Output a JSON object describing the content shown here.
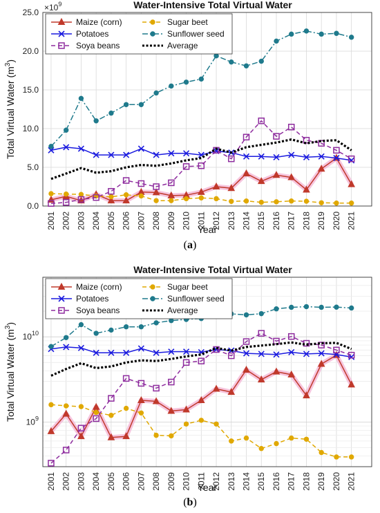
{
  "chart_data": [
    {
      "type": "line",
      "panel_label": "a",
      "title": "Water-Intensive Total Virtual Water",
      "xlabel": "Year",
      "ylabel": "Total Virtual Water (m",
      "ylabel_sup": "3",
      "ylabel_end": ")",
      "y_multiplier": "×10",
      "y_multiplier_exp": "9",
      "yscale": "linear",
      "ylim": [
        0,
        25
      ],
      "yticks": [
        "0.0",
        "5.0",
        "10.0",
        "15.0",
        "20.0",
        "25.0"
      ],
      "grid": true,
      "legend_position": "top-left",
      "x": [
        "2001",
        "2002",
        "2003",
        "2004",
        "2005",
        "2006",
        "2007",
        "2008",
        "2009",
        "2010",
        "2011",
        "2012",
        "2013",
        "2014",
        "2015",
        "2016",
        "2017",
        "2018",
        "2019",
        "2020",
        "2021"
      ],
      "series": [
        {
          "name": "Maize (corn)",
          "color": "#c0392b",
          "dash": "solid",
          "marker": "triangle",
          "values": [
            0.8,
            1.25,
            0.7,
            1.5,
            0.7,
            0.7,
            1.8,
            1.75,
            1.35,
            1.4,
            1.8,
            2.5,
            2.3,
            4.2,
            3.2,
            4.0,
            3.7,
            2.1,
            4.8,
            6.2,
            2.8
          ]
        },
        {
          "name": "Sugar beet",
          "color": "#e0a800",
          "dash": "dashed",
          "marker": "circle",
          "values": [
            1.6,
            1.55,
            1.5,
            1.3,
            1.2,
            1.45,
            1.3,
            0.7,
            0.7,
            0.95,
            1.05,
            0.95,
            0.6,
            0.65,
            0.48,
            0.55,
            0.65,
            0.62,
            0.42,
            0.38,
            0.38
          ]
        },
        {
          "name": "Potatoes",
          "color": "#1a1adf",
          "dash": "solid",
          "marker": "x",
          "values": [
            7.2,
            7.6,
            7.4,
            6.6,
            6.6,
            6.6,
            7.4,
            6.6,
            6.8,
            6.8,
            6.6,
            7.1,
            6.9,
            6.4,
            6.4,
            6.3,
            6.6,
            6.3,
            6.4,
            6.2,
            5.9
          ]
        },
        {
          "name": "Sunflower seed",
          "color": "#1f7a8c",
          "dash": "dashdot",
          "marker": "circle",
          "values": [
            7.7,
            9.8,
            13.9,
            11.0,
            12.0,
            13.1,
            13.1,
            14.6,
            15.5,
            16.0,
            16.4,
            19.4,
            18.6,
            18.1,
            18.7,
            21.3,
            22.2,
            22.6,
            22.2,
            22.3,
            21.8
          ]
        },
        {
          "name": "Soya beans",
          "color": "#8e2c9e",
          "dash": "dashed",
          "marker": "square",
          "values": [
            0.33,
            0.47,
            0.85,
            1.1,
            1.9,
            3.3,
            2.9,
            2.5,
            3.0,
            5.1,
            5.2,
            7.2,
            6.1,
            8.9,
            11.0,
            9.0,
            10.2,
            8.5,
            8.1,
            7.2,
            6.1
          ]
        },
        {
          "name": "Average",
          "color": "#000000",
          "dash": "dotted",
          "marker": "none",
          "values": [
            3.5,
            4.2,
            4.9,
            4.3,
            4.5,
            5.0,
            5.3,
            5.2,
            5.5,
            5.9,
            6.2,
            7.4,
            6.9,
            7.6,
            7.9,
            8.2,
            8.6,
            8.1,
            8.4,
            8.5,
            7.2
          ]
        }
      ]
    },
    {
      "type": "line",
      "panel_label": "b",
      "title": "Water-Intensive Total Virtual Water",
      "xlabel": "Year",
      "ylabel": "Total Virtual Water (m",
      "ylabel_sup": "3",
      "ylabel_end": ")",
      "yscale": "log",
      "ylim": [
        300000000.0,
        50000000000.0
      ],
      "yticks": [
        {
          "base": "10",
          "exp": "9",
          "value": 1000000000.0
        },
        {
          "base": "10",
          "exp": "10",
          "value": 10000000000.0
        }
      ],
      "grid": true,
      "legend_position": "top-left",
      "x": [
        "2001",
        "2002",
        "2003",
        "2004",
        "2005",
        "2006",
        "2007",
        "2008",
        "2009",
        "2010",
        "2011",
        "2012",
        "2013",
        "2014",
        "2015",
        "2016",
        "2017",
        "2018",
        "2019",
        "2020",
        "2021"
      ],
      "series": [
        {
          "name": "Maize (corn)",
          "color": "#c0392b",
          "dash": "solid",
          "marker": "triangle",
          "values": [
            780000000.0,
            1250000000.0,
            680000000.0,
            1500000000.0,
            660000000.0,
            680000000.0,
            1800000000.0,
            1750000000.0,
            1350000000.0,
            1400000000.0,
            1800000000.0,
            2450000000.0,
            2250000000.0,
            4100000000.0,
            3150000000.0,
            3900000000.0,
            3600000000.0,
            2050000000.0,
            4800000000.0,
            6100000000.0,
            2750000000.0
          ]
        },
        {
          "name": "Sugar beet",
          "color": "#e0a800",
          "dash": "dashed",
          "marker": "circle",
          "values": [
            1600000000.0,
            1550000000.0,
            1520000000.0,
            1300000000.0,
            1200000000.0,
            1450000000.0,
            1280000000.0,
            700000000.0,
            690000000.0,
            950000000.0,
            1050000000.0,
            950000000.0,
            600000000.0,
            650000000.0,
            490000000.0,
            560000000.0,
            650000000.0,
            630000000.0,
            440000000.0,
            390000000.0,
            390000000.0
          ]
        },
        {
          "name": "Potatoes",
          "color": "#1a1adf",
          "dash": "solid",
          "marker": "x",
          "values": [
            7200000000.0,
            7600000000.0,
            7400000000.0,
            6500000000.0,
            6500000000.0,
            6500000000.0,
            7300000000.0,
            6500000000.0,
            6700000000.0,
            6700000000.0,
            6600000000.0,
            7100000000.0,
            6900000000.0,
            6400000000.0,
            6300000000.0,
            6200000000.0,
            6600000000.0,
            6300000000.0,
            6400000000.0,
            6200000000.0,
            5800000000.0
          ]
        },
        {
          "name": "Sunflower seed",
          "color": "#1f7a8c",
          "dash": "dashdot",
          "marker": "circle",
          "values": [
            7700000000.0,
            9800000000.0,
            13900000000.0,
            11000000000.0,
            12000000000.0,
            13100000000.0,
            13100000000.0,
            14600000000.0,
            15500000000.0,
            16000000000.0,
            16400000000.0,
            19400000000.0,
            18600000000.0,
            18100000000.0,
            18700000000.0,
            21300000000.0,
            22200000000.0,
            22600000000.0,
            22200000000.0,
            22300000000.0,
            21800000000.0
          ]
        },
        {
          "name": "Soya beans",
          "color": "#8e2c9e",
          "dash": "dashed",
          "marker": "square",
          "values": [
            330000000.0,
            470000000.0,
            850000000.0,
            1100000000.0,
            1900000000.0,
            3250000000.0,
            2850000000.0,
            2500000000.0,
            2950000000.0,
            5000000000.0,
            5200000000.0,
            7100000000.0,
            6000000000.0,
            8800000000.0,
            11000000000.0,
            8900000000.0,
            10100000000.0,
            8400000000.0,
            8000000000.0,
            7000000000.0,
            6100000000.0
          ]
        },
        {
          "name": "Average",
          "color": "#000000",
          "dash": "dotted",
          "marker": "none",
          "values": [
            3500000000.0,
            4200000000.0,
            4900000000.0,
            4300000000.0,
            4500000000.0,
            5000000000.0,
            5300000000.0,
            5200000000.0,
            5500000000.0,
            5900000000.0,
            6200000000.0,
            7400000000.0,
            6900000000.0,
            7600000000.0,
            7900000000.0,
            8200000000.0,
            8600000000.0,
            8100000000.0,
            8400000000.0,
            8500000000.0,
            7200000000.0
          ]
        }
      ]
    }
  ]
}
